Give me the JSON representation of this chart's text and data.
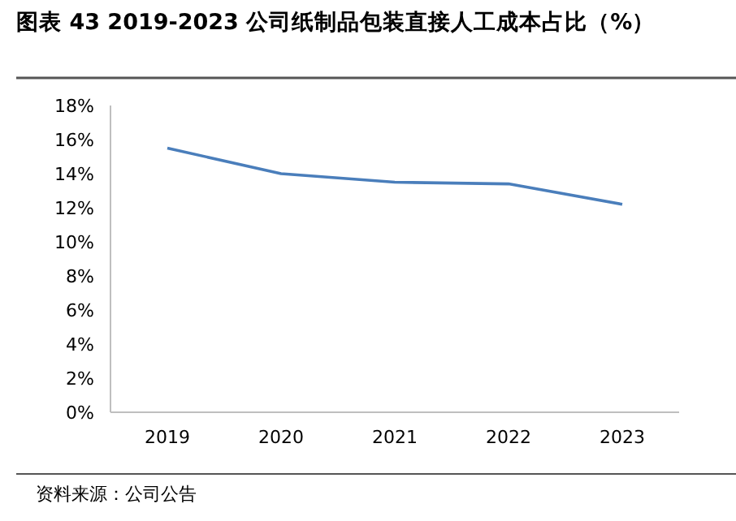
{
  "chart_data": {
    "type": "line",
    "title": "图表 43 2019-2023 公司纸制品包装直接人工成本占比（%）",
    "categories": [
      "2019",
      "2020",
      "2021",
      "2022",
      "2023"
    ],
    "series": [
      {
        "color": "#4a7ebb",
        "values": [
          15.5,
          14.0,
          13.5,
          13.4,
          12.2
        ]
      }
    ],
    "ylim": [
      0,
      18
    ],
    "yticks": [
      {
        "value": 0,
        "label": "0%"
      },
      {
        "value": 2,
        "label": "2%"
      },
      {
        "value": 4,
        "label": "4%"
      },
      {
        "value": 6,
        "label": "6%"
      },
      {
        "value": 8,
        "label": "8%"
      },
      {
        "value": 10,
        "label": "10%"
      },
      {
        "value": 12,
        "label": "12%"
      },
      {
        "value": 14,
        "label": "14%"
      },
      {
        "value": 16,
        "label": "16%"
      },
      {
        "value": 18,
        "label": "18%"
      }
    ],
    "grid": false,
    "marker": "none",
    "line_style": "solid",
    "annotations": [
      "资料来源：公司公告"
    ]
  }
}
